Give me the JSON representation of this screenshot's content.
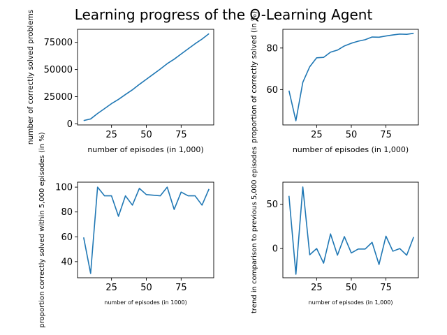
{
  "figure": {
    "title": "Learning progress of the Q-Learning Agent"
  },
  "chart_data": [
    {
      "type": "line",
      "position": "top-left",
      "title": "",
      "xlabel": "number of episodes (in 1,000)",
      "ylabel": "number of correctly solved problems",
      "xlim": [
        0.6,
        98.4
      ],
      "ylim": [
        -1000,
        87000
      ],
      "xticks": [
        25,
        50,
        75
      ],
      "yticks": [
        0,
        25000,
        50000,
        75000
      ],
      "ytick_labels": [
        "0",
        "25000",
        "50000",
        "75000"
      ],
      "color": "#1f77b4",
      "grid": false,
      "x": [
        5,
        10,
        15,
        20,
        25,
        30,
        35,
        40,
        45,
        50,
        55,
        60,
        65,
        70,
        75,
        80,
        85,
        90,
        95
      ],
      "y": [
        3000,
        4500,
        9500,
        14000,
        18600,
        22500,
        27000,
        31300,
        36300,
        41000,
        45700,
        50400,
        55400,
        59500,
        64300,
        69000,
        73700,
        78000,
        83000
      ]
    },
    {
      "type": "line",
      "position": "top-right",
      "title": "",
      "xlabel": "number of episodes (in 1,000)",
      "ylabel": "proportion of correctly solved (in %)",
      "xlim": [
        0.6,
        98.4
      ],
      "ylim": [
        43,
        89
      ],
      "xticks": [
        25,
        50,
        75
      ],
      "yticks": [
        60,
        80
      ],
      "ytick_labels": [
        "60",
        "80"
      ],
      "color": "#1f77b4",
      "grid": false,
      "x": [
        5,
        10,
        15,
        20,
        25,
        30,
        35,
        40,
        45,
        50,
        55,
        60,
        65,
        70,
        75,
        80,
        85,
        90,
        95
      ],
      "y": [
        59.5,
        45,
        63.5,
        71,
        75.3,
        75.5,
        78,
        79,
        81,
        82.3,
        83.3,
        84,
        85.3,
        85.2,
        85.8,
        86.3,
        86.7,
        86.6,
        87.1
      ]
    },
    {
      "type": "line",
      "position": "bottom-left",
      "title": "",
      "xlabel": "number of episodes (in 1000)",
      "ylabel": "proportion correctly solved within 5,000 episodes (in %)",
      "xlim": [
        0.6,
        98.4
      ],
      "ylim": [
        27,
        104
      ],
      "xticks": [
        25,
        50,
        75
      ],
      "yticks": [
        40,
        60,
        80,
        100
      ],
      "ytick_labels": [
        "40",
        "60",
        "80",
        "100"
      ],
      "color": "#1f77b4",
      "grid": false,
      "x": [
        5,
        10,
        15,
        20,
        25,
        30,
        35,
        40,
        45,
        50,
        55,
        60,
        65,
        70,
        75,
        80,
        85,
        90,
        95
      ],
      "y": [
        59.5,
        30.5,
        100,
        93,
        93,
        76.5,
        93,
        85.5,
        99,
        94,
        93.5,
        93,
        100,
        82,
        96,
        93,
        93,
        85.5,
        98.5
      ]
    },
    {
      "type": "line",
      "position": "bottom-right",
      "title": "",
      "xlabel": "number of episodes (in 1,000)",
      "ylabel": "trend in comparison to previous 5,000 episodes",
      "xlim": [
        0.6,
        98.4
      ],
      "ylim": [
        -33,
        75
      ],
      "xticks": [
        25,
        50,
        75
      ],
      "yticks": [
        0,
        50
      ],
      "ytick_labels": [
        "0",
        "50"
      ],
      "color": "#1f77b4",
      "grid": false,
      "x": [
        5,
        10,
        15,
        20,
        25,
        30,
        35,
        40,
        45,
        50,
        55,
        60,
        65,
        70,
        75,
        80,
        85,
        90,
        95
      ],
      "y": [
        59.5,
        -29,
        69.5,
        -7,
        0,
        -16.5,
        16.5,
        -7.5,
        13.5,
        -5,
        -0.5,
        -0.5,
        7,
        -18,
        14,
        -3,
        0,
        -7.5,
        13
      ]
    }
  ]
}
